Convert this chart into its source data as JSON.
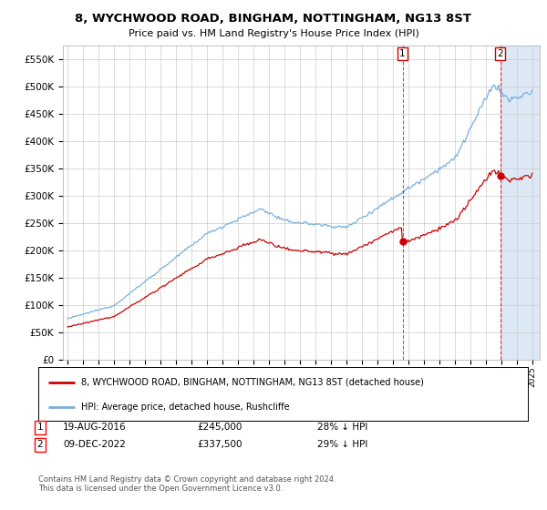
{
  "title": "8, WYCHWOOD ROAD, BINGHAM, NOTTINGHAM, NG13 8ST",
  "subtitle": "Price paid vs. HM Land Registry's House Price Index (HPI)",
  "hpi_color": "#7ab0dc",
  "property_color": "#cc0000",
  "dashed_color": "#cc0000",
  "shade_color": "#dce9f5",
  "background_color": "#ffffff",
  "grid_color": "#cccccc",
  "ylim": [
    0,
    575000
  ],
  "yticks": [
    0,
    50000,
    100000,
    150000,
    200000,
    250000,
    300000,
    350000,
    400000,
    450000,
    500000,
    550000
  ],
  "ytick_labels": [
    "£0",
    "£50K",
    "£100K",
    "£150K",
    "£200K",
    "£250K",
    "£300K",
    "£350K",
    "£400K",
    "£450K",
    "£500K",
    "£550K"
  ],
  "xlim_start": 1994.7,
  "xlim_end": 2025.5,
  "sale1_year": 2016.63,
  "sale1_price": 245000,
  "sale1_label": "1",
  "sale1_date": "19-AUG-2016",
  "sale1_amount": "£245,000",
  "sale1_hpi": "28% ↓ HPI",
  "sale2_year": 2022.94,
  "sale2_price": 337500,
  "sale2_label": "2",
  "sale2_date": "09-DEC-2022",
  "sale2_amount": "£337,500",
  "sale2_hpi": "29% ↓ HPI",
  "legend_line1": "8, WYCHWOOD ROAD, BINGHAM, NOTTINGHAM, NG13 8ST (detached house)",
  "legend_line2": "HPI: Average price, detached house, Rushcliffe",
  "copyright_text": "Contains HM Land Registry data © Crown copyright and database right 2024.\nThis data is licensed under the Open Government Licence v3.0."
}
